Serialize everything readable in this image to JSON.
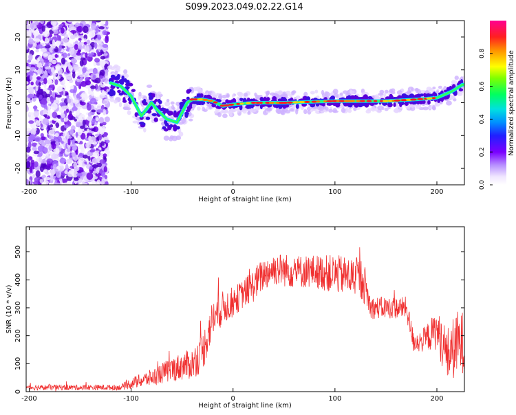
{
  "title": "S099.2023.049.02.22.G14",
  "chart_data": [
    {
      "type": "heatmap",
      "xlabel": "Height of straight line (km)",
      "ylabel": "Frequency (Hz)",
      "xlim": [
        -203,
        227
      ],
      "ylim": [
        -25,
        25
      ],
      "xticks": [
        -200,
        -100,
        0,
        100,
        200
      ],
      "yticks": [
        -20,
        -10,
        0,
        10,
        20
      ],
      "colorbar": {
        "label": "Normalized spectral amplitude",
        "ticks": [
          0.0,
          0.2,
          0.4,
          0.6,
          0.8
        ],
        "range": [
          0,
          1
        ]
      },
      "ridge": {
        "description_points": [
          [
            -120,
            6
          ],
          [
            -110,
            5
          ],
          [
            -100,
            2
          ],
          [
            -90,
            -4
          ],
          [
            -80,
            0
          ],
          [
            -75,
            -2
          ],
          [
            -65,
            -5
          ],
          [
            -55,
            -6
          ],
          [
            -50,
            -3
          ],
          [
            -45,
            0
          ],
          [
            -40,
            1
          ],
          [
            -30,
            1
          ],
          [
            -20,
            0.5
          ],
          [
            -10,
            -1
          ],
          [
            0,
            -0.5
          ],
          [
            20,
            0
          ],
          [
            50,
            0
          ],
          [
            100,
            0.5
          ],
          [
            150,
            0.5
          ],
          [
            180,
            1
          ],
          [
            200,
            1.5
          ],
          [
            215,
            3.5
          ],
          [
            225,
            5.5
          ]
        ],
        "noise_region_x": [
          -203,
          -123
        ]
      },
      "grid": false,
      "legend": "none"
    },
    {
      "type": "line",
      "xlabel": "Height of straight line (km)",
      "ylabel": "SNR (10 * v/v)",
      "xlim": [
        -203,
        227
      ],
      "ylim": [
        0,
        590
      ],
      "xticks": [
        -200,
        -100,
        0,
        100,
        200
      ],
      "yticks": [
        0,
        100,
        200,
        300,
        400,
        500
      ],
      "color": "#f03030",
      "series": [
        {
          "envelope_x": [
            -203,
            -110,
            -100,
            -80,
            -60,
            -40,
            -30,
            -20,
            -10,
            0,
            10,
            20,
            30,
            40,
            60,
            80,
            100,
            120,
            128,
            135,
            150,
            170,
            177,
            185,
            200,
            210,
            220,
            227
          ],
          "envelope_y": [
            15,
            15,
            30,
            50,
            80,
            100,
            140,
            260,
            300,
            320,
            350,
            380,
            420,
            440,
            430,
            430,
            420,
            410,
            400,
            300,
            300,
            300,
            180,
            180,
            220,
            130,
            170,
            180
          ],
          "noise_amplitude": [
            10,
            10,
            20,
            30,
            45,
            55,
            70,
            70,
            60,
            55,
            50,
            60,
            60,
            60,
            60,
            60,
            70,
            70,
            80,
            40,
            40,
            40,
            40,
            40,
            70,
            100,
            120,
            110
          ]
        }
      ],
      "grid": false,
      "legend": "none"
    }
  ]
}
